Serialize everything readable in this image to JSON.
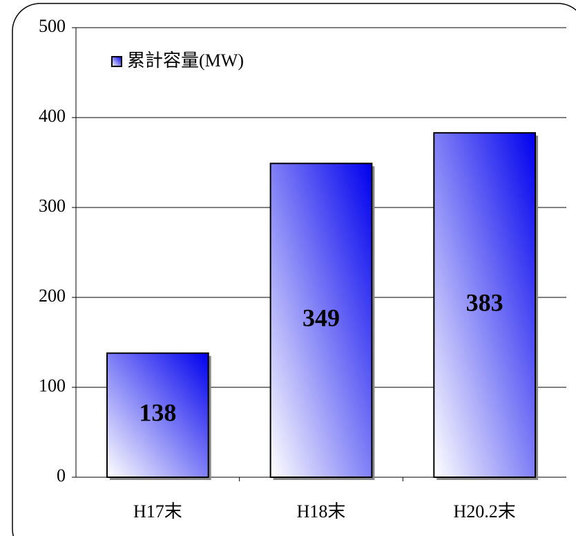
{
  "chart_data": {
    "type": "bar",
    "categories": [
      "H17末",
      "H18末",
      "H20.2末"
    ],
    "series": [
      {
        "name": "累計容量(MW)",
        "color": "#0000ee",
        "values": [
          138,
          349,
          383
        ]
      }
    ],
    "ylim": [
      0,
      500
    ],
    "yticks": [
      0,
      100,
      200,
      300,
      400,
      500
    ],
    "grid": true,
    "legend": "upper left"
  }
}
